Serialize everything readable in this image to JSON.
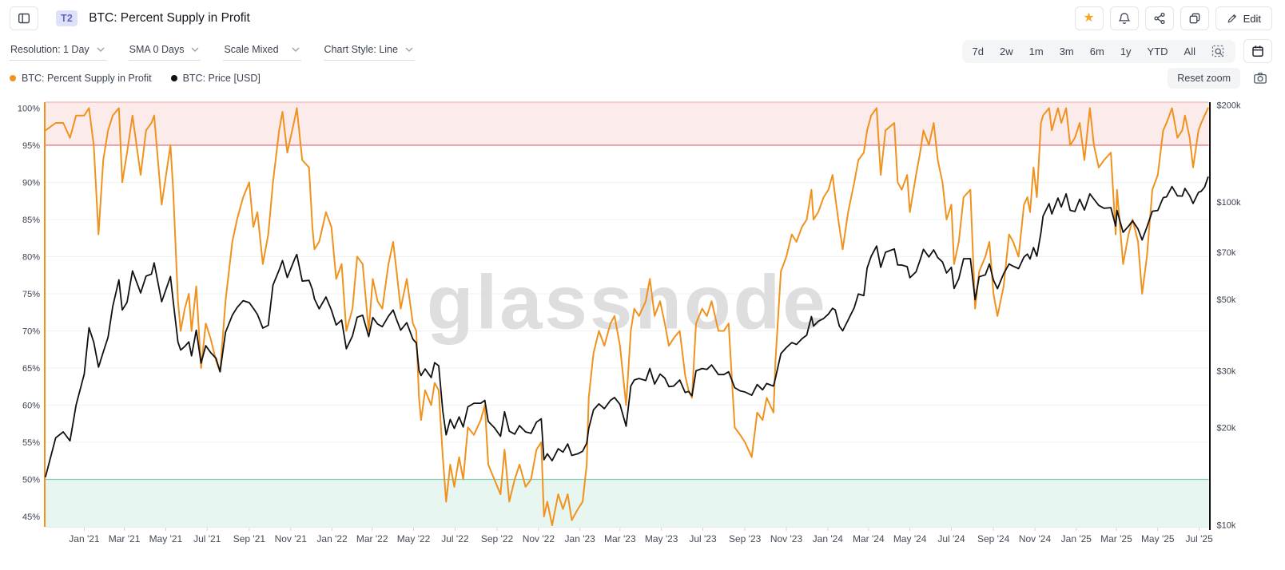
{
  "header": {
    "badge": "T2",
    "title": "BTC: Percent Supply in Profit",
    "actions": {
      "edit_label": "Edit"
    },
    "icon_names": [
      "panel-left-icon",
      "favorite-star-icon",
      "bell-icon",
      "share-icon",
      "duplicate-icon",
      "pencil-icon"
    ]
  },
  "toolbar": {
    "dropdowns": [
      {
        "label": "Resolution: 1 Day"
      },
      {
        "label": "SMA 0 Days"
      },
      {
        "label": "Scale Mixed"
      },
      {
        "label": "Chart Style: Line"
      }
    ],
    "ranges": [
      "7d",
      "2w",
      "1m",
      "3m",
      "6m",
      "1y",
      "YTD",
      "All"
    ],
    "icon_names": [
      "zoom-select-icon",
      "calendar-icon"
    ]
  },
  "legend": {
    "items": [
      {
        "label": "BTC: Percent Supply in Profit",
        "color": "#f0921e"
      },
      {
        "label": "BTC: Price [USD]",
        "color": "#111111"
      }
    ],
    "reset_zoom_label": "Reset zoom",
    "icon_names": [
      "camera-icon"
    ]
  },
  "watermark": "glassnode",
  "colors": {
    "accent_orange": "#f0921e",
    "price_black": "#111111",
    "star_gold": "#f7a825",
    "badge_bg": "#dfe1f9",
    "badge_text": "#5f66c9",
    "grid": "#f0f1f2"
  },
  "chart_data": {
    "type": "line",
    "title": "BTC: Percent Supply in Profit",
    "grid": "horizontal-only",
    "legend_position": "top-left",
    "x_domain": [
      "2020-11-05",
      "2025-07-15"
    ],
    "left_axis": {
      "label": "percent supply in profit",
      "domain": [
        43.6,
        100.8
      ],
      "scale": "linear",
      "ticks": [
        {
          "value": 100,
          "label": "100%"
        },
        {
          "value": 95,
          "label": "95%"
        },
        {
          "value": 90,
          "label": "90%"
        },
        {
          "value": 85,
          "label": "85%"
        },
        {
          "value": 80,
          "label": "80%"
        },
        {
          "value": 75,
          "label": "75%"
        },
        {
          "value": 70,
          "label": "70%"
        },
        {
          "value": 65,
          "label": "65%"
        },
        {
          "value": 60,
          "label": "60%"
        },
        {
          "value": 55,
          "label": "55%"
        },
        {
          "value": 50,
          "label": "50%"
        },
        {
          "value": 45,
          "label": "45%"
        }
      ],
      "grid_values": [
        90,
        85,
        80,
        75,
        70,
        65,
        60,
        55,
        45
      ]
    },
    "right_axis": {
      "label": "BTC price, thousand USD",
      "domain": [
        9.85,
        204
      ],
      "scale": "log",
      "ticks": [
        {
          "value": 200,
          "label": "$200k"
        },
        {
          "value": 100,
          "label": "$100k"
        },
        {
          "value": 70,
          "label": "$70k"
        },
        {
          "value": 50,
          "label": "$50k"
        },
        {
          "value": 30,
          "label": "$30k"
        },
        {
          "value": 20,
          "label": "$20k"
        },
        {
          "value": 10,
          "label": "$10k"
        }
      ]
    },
    "bands": [
      {
        "name": "high-profit-band",
        "axis": "left",
        "from": 95,
        "to": 100.8,
        "fill": "rgba(228,90,90,0.12)",
        "border_top": "#f2b3b0",
        "border_bottom": "#e25d5d"
      },
      {
        "name": "low-profit-band",
        "axis": "left",
        "from": 43.6,
        "to": 50,
        "fill": "rgba(102,194,164,0.15)",
        "border_top": "#7ecfae"
      }
    ],
    "x_tick_labels": [
      {
        "date": "2021-01-01",
        "label": "Jan '21"
      },
      {
        "date": "2021-03-01",
        "label": "Mar '21"
      },
      {
        "date": "2021-05-01",
        "label": "May '21"
      },
      {
        "date": "2021-07-01",
        "label": "Jul '21"
      },
      {
        "date": "2021-09-01",
        "label": "Sep '21"
      },
      {
        "date": "2021-11-01",
        "label": "Nov '21"
      },
      {
        "date": "2022-01-01",
        "label": "Jan '22"
      },
      {
        "date": "2022-03-01",
        "label": "Mar '22"
      },
      {
        "date": "2022-05-01",
        "label": "May '22"
      },
      {
        "date": "2022-07-01",
        "label": "Jul '22"
      },
      {
        "date": "2022-09-01",
        "label": "Sep '22"
      },
      {
        "date": "2022-11-01",
        "label": "Nov '22"
      },
      {
        "date": "2023-01-01",
        "label": "Jan '23"
      },
      {
        "date": "2023-03-01",
        "label": "Mar '23"
      },
      {
        "date": "2023-05-01",
        "label": "May '23"
      },
      {
        "date": "2023-07-01",
        "label": "Jul '23"
      },
      {
        "date": "2023-09-01",
        "label": "Sep '23"
      },
      {
        "date": "2023-11-01",
        "label": "Nov '23"
      },
      {
        "date": "2024-01-01",
        "label": "Jan '24"
      },
      {
        "date": "2024-03-01",
        "label": "Mar '24"
      },
      {
        "date": "2024-05-01",
        "label": "May '24"
      },
      {
        "date": "2024-07-01",
        "label": "Jul '24"
      },
      {
        "date": "2024-09-01",
        "label": "Sep '24"
      },
      {
        "date": "2024-11-01",
        "label": "Nov '24"
      },
      {
        "date": "2025-01-01",
        "label": "Jan '25"
      },
      {
        "date": "2025-03-01",
        "label": "Mar '25"
      },
      {
        "date": "2025-05-01",
        "label": "May '25"
      },
      {
        "date": "2025-07-01",
        "label": "Jul '25"
      }
    ],
    "x": [
      "2020-11-05",
      "2020-11-20",
      "2020-12-01",
      "2020-12-11",
      "2020-12-20",
      "2021-01-01",
      "2021-01-08",
      "2021-01-15",
      "2021-01-22",
      "2021-01-29",
      "2021-02-05",
      "2021-02-12",
      "2021-02-21",
      "2021-02-26",
      "2021-03-05",
      "2021-03-13",
      "2021-03-25",
      "2021-04-02",
      "2021-04-10",
      "2021-04-14",
      "2021-04-25",
      "2021-05-08",
      "2021-05-12",
      "2021-05-19",
      "2021-05-23",
      "2021-05-29",
      "2021-06-04",
      "2021-06-08",
      "2021-06-15",
      "2021-06-22",
      "2021-06-29",
      "2021-07-06",
      "2021-07-14",
      "2021-07-20",
      "2021-07-28",
      "2021-08-07",
      "2021-08-14",
      "2021-08-23",
      "2021-09-01",
      "2021-09-07",
      "2021-09-13",
      "2021-09-21",
      "2021-09-29",
      "2021-10-06",
      "2021-10-15",
      "2021-10-20",
      "2021-10-27",
      "2021-11-08",
      "2021-11-10",
      "2021-11-18",
      "2021-11-28",
      "2021-12-03",
      "2021-12-06",
      "2021-12-13",
      "2021-12-23",
      "2021-12-31",
      "2022-01-07",
      "2022-01-15",
      "2022-01-22",
      "2022-01-31",
      "2022-02-07",
      "2022-02-15",
      "2022-02-24",
      "2022-03-02",
      "2022-03-09",
      "2022-03-16",
      "2022-03-25",
      "2022-04-01",
      "2022-04-06",
      "2022-04-12",
      "2022-04-21",
      "2022-04-30",
      "2022-05-05",
      "2022-05-09",
      "2022-05-12",
      "2022-05-18",
      "2022-05-27",
      "2022-06-01",
      "2022-06-07",
      "2022-06-13",
      "2022-06-18",
      "2022-06-24",
      "2022-06-30",
      "2022-07-07",
      "2022-07-13",
      "2022-07-20",
      "2022-07-29",
      "2022-08-08",
      "2022-08-14",
      "2022-08-19",
      "2022-08-28",
      "2022-09-06",
      "2022-09-12",
      "2022-09-19",
      "2022-09-27",
      "2022-10-04",
      "2022-10-13",
      "2022-10-21",
      "2022-10-29",
      "2022-11-05",
      "2022-11-09",
      "2022-11-14",
      "2022-11-21",
      "2022-11-30",
      "2022-12-07",
      "2022-12-14",
      "2022-12-20",
      "2022-12-29",
      "2023-01-05",
      "2023-01-11",
      "2023-01-14",
      "2023-01-21",
      "2023-01-29",
      "2023-02-06",
      "2023-02-15",
      "2023-02-21",
      "2023-03-01",
      "2023-03-10",
      "2023-03-17",
      "2023-03-22",
      "2023-03-29",
      "2023-04-08",
      "2023-04-14",
      "2023-04-21",
      "2023-04-29",
      "2023-05-06",
      "2023-05-12",
      "2023-05-19",
      "2023-05-28",
      "2023-06-05",
      "2023-06-10",
      "2023-06-15",
      "2023-06-21",
      "2023-06-30",
      "2023-07-07",
      "2023-07-14",
      "2023-07-24",
      "2023-08-01",
      "2023-08-08",
      "2023-08-17",
      "2023-08-25",
      "2023-09-01",
      "2023-09-11",
      "2023-09-19",
      "2023-09-27",
      "2023-10-03",
      "2023-10-13",
      "2023-10-16",
      "2023-10-24",
      "2023-11-01",
      "2023-11-09",
      "2023-11-16",
      "2023-11-24",
      "2023-12-01",
      "2023-12-08",
      "2023-12-11",
      "2023-12-18",
      "2023-12-26",
      "2024-01-02",
      "2024-01-08",
      "2024-01-12",
      "2024-01-18",
      "2024-01-23",
      "2024-01-31",
      "2024-02-09",
      "2024-02-15",
      "2024-02-23",
      "2024-02-28",
      "2024-03-05",
      "2024-03-13",
      "2024-03-19",
      "2024-03-26",
      "2024-04-08",
      "2024-04-13",
      "2024-04-19",
      "2024-04-27",
      "2024-05-01",
      "2024-05-10",
      "2024-05-16",
      "2024-05-21",
      "2024-05-29",
      "2024-06-05",
      "2024-06-11",
      "2024-06-18",
      "2024-06-24",
      "2024-07-01",
      "2024-07-05",
      "2024-07-12",
      "2024-07-19",
      "2024-07-29",
      "2024-08-05",
      "2024-08-11",
      "2024-08-20",
      "2024-08-26",
      "2024-09-01",
      "2024-09-07",
      "2024-09-16",
      "2024-09-24",
      "2024-09-30",
      "2024-10-08",
      "2024-10-16",
      "2024-10-21",
      "2024-10-25",
      "2024-10-30",
      "2024-11-04",
      "2024-11-10",
      "2024-11-13",
      "2024-11-22",
      "2024-11-26",
      "2024-12-05",
      "2024-12-10",
      "2024-12-17",
      "2024-12-23",
      "2024-12-30",
      "2025-01-06",
      "2025-01-13",
      "2025-01-21",
      "2025-01-27",
      "2025-02-03",
      "2025-02-11",
      "2025-02-21",
      "2025-02-28",
      "2025-03-02",
      "2025-03-11",
      "2025-03-19",
      "2025-03-25",
      "2025-04-02",
      "2025-04-08",
      "2025-04-15",
      "2025-04-23",
      "2025-05-01",
      "2025-05-09",
      "2025-05-14",
      "2025-05-22",
      "2025-05-30",
      "2025-06-06",
      "2025-06-10",
      "2025-06-17",
      "2025-06-22",
      "2025-06-30",
      "2025-07-04",
      "2025-07-09",
      "2025-07-14"
    ],
    "series": [
      {
        "name": "BTC: Percent Supply in Profit",
        "axis": "left",
        "color": "#f0921e",
        "unit": "%",
        "values": [
          97,
          98,
          98,
          96,
          99,
          99,
          100,
          95,
          83,
          93,
          97,
          99,
          100,
          90,
          94,
          99,
          91,
          97,
          98,
          99,
          87,
          95,
          89,
          74,
          70,
          73,
          75,
          70,
          76,
          65,
          71,
          69,
          66,
          64.5,
          74,
          82,
          85,
          88,
          90,
          84,
          86,
          79,
          83,
          90,
          97,
          99.5,
          94,
          99,
          100,
          93,
          92,
          84,
          81,
          82,
          86,
          84,
          77,
          79,
          70,
          73,
          80,
          79,
          70,
          77,
          74,
          73,
          79,
          82,
          78,
          73,
          77,
          71,
          70,
          61,
          58,
          62,
          60,
          63,
          62,
          53,
          47,
          52,
          49,
          53,
          50,
          57,
          56,
          58,
          60,
          52,
          50,
          48,
          54,
          47,
          50,
          52,
          49,
          50,
          54,
          55,
          45,
          47,
          43.8,
          48,
          46,
          48,
          44.5,
          46,
          47,
          52,
          61,
          67,
          70,
          68,
          71,
          72,
          68,
          60,
          70,
          73,
          72,
          74,
          77,
          72,
          74,
          71,
          68,
          69,
          70,
          64,
          62,
          61,
          71,
          73,
          72,
          74,
          70,
          70,
          71,
          57,
          56,
          55,
          53,
          59,
          58,
          61,
          59,
          66,
          78,
          80,
          83,
          82,
          84,
          85,
          89,
          85,
          86,
          88,
          89,
          91,
          88,
          84,
          81,
          86,
          90,
          93,
          94,
          97,
          99,
          100,
          91,
          97,
          98,
          90,
          89,
          91,
          86,
          91,
          94,
          97,
          95,
          98,
          93,
          90,
          85,
          87,
          79,
          82,
          88,
          89,
          73,
          78,
          80,
          82,
          75,
          72,
          76,
          83,
          82,
          80,
          87,
          88,
          86,
          92,
          88,
          98,
          99,
          100,
          97,
          100,
          98,
          100,
          95,
          96,
          98,
          93,
          100,
          95,
          92,
          93,
          94,
          83,
          89,
          79,
          83,
          85,
          82,
          75,
          80,
          89,
          91,
          97,
          98,
          100,
          96,
          97,
          99,
          96,
          92,
          97,
          98,
          99,
          100
        ]
      },
      {
        "name": "BTC: Price [USD]",
        "axis": "right",
        "color": "#111111",
        "unit": "thousand USD",
        "values": [
          14.1,
          18.6,
          19.4,
          18.2,
          23.5,
          29.3,
          40.8,
          36.8,
          30.8,
          34.3,
          38.1,
          47.5,
          57.4,
          46.3,
          48.9,
          61.2,
          52.3,
          59.0,
          59.8,
          64.8,
          49.1,
          58.8,
          49.4,
          36.8,
          34.8,
          35.7,
          36.9,
          33.4,
          40.1,
          31.7,
          35.9,
          34.2,
          32.8,
          29.8,
          39.5,
          44.6,
          47.1,
          49.5,
          48.8,
          46.9,
          44.9,
          40.7,
          41.5,
          55.3,
          61.6,
          65.9,
          58.4,
          67.5,
          68.8,
          56.9,
          57.2,
          53.6,
          50.1,
          46.7,
          50.8,
          46.3,
          41.6,
          43.1,
          35.1,
          38.5,
          44.0,
          44.6,
          38.3,
          43.9,
          41.9,
          41.1,
          44.3,
          46.3,
          43.2,
          40.1,
          42.3,
          37.6,
          36.6,
          30.1,
          29.0,
          30.4,
          28.6,
          31.8,
          31.1,
          22.5,
          19.0,
          21.2,
          19.9,
          21.6,
          20.1,
          23.2,
          23.8,
          23.8,
          24.3,
          20.9,
          20.0,
          18.8,
          22.4,
          19.5,
          19.1,
          20.3,
          19.4,
          19.2,
          20.8,
          21.3,
          15.9,
          16.6,
          15.8,
          17.2,
          16.8,
          17.8,
          16.4,
          16.6,
          16.9,
          17.9,
          19.9,
          22.7,
          23.7,
          22.9,
          24.3,
          24.8,
          23.6,
          20.2,
          26.9,
          28.1,
          28.4,
          28.0,
          30.5,
          27.3,
          29.3,
          28.5,
          26.8,
          26.9,
          28.1,
          25.7,
          25.9,
          25.1,
          30.0,
          30.5,
          30.3,
          31.3,
          29.2,
          29.2,
          29.8,
          26.6,
          26.0,
          25.8,
          25.2,
          27.2,
          26.2,
          27.4,
          26.9,
          28.5,
          33.9,
          35.4,
          36.7,
          36.2,
          37.7,
          38.7,
          44.2,
          41.3,
          42.7,
          43.6,
          45.0,
          46.9,
          46.3,
          41.3,
          39.9,
          43.1,
          47.1,
          51.9,
          51.3,
          62.5,
          68.0,
          73.1,
          62.8,
          69.9,
          71.6,
          63.9,
          63.8,
          63.1,
          58.3,
          60.8,
          66.2,
          71.4,
          67.6,
          71.1,
          67.3,
          65.2,
          60.3,
          62.8,
          54.0,
          57.9,
          66.7,
          66.8,
          49.8,
          58.7,
          59.5,
          64.3,
          57.3,
          53.9,
          60.0,
          64.3,
          63.3,
          62.2,
          67.6,
          69.0,
          66.6,
          72.3,
          68.0,
          80.4,
          90.4,
          98.9,
          91.9,
          102.9,
          96.6,
          106.1,
          94.3,
          93.5,
          102.1,
          94.5,
          106.1,
          102.1,
          97.7,
          95.7,
          96.1,
          84.3,
          94.2,
          80.6,
          84.2,
          87.5,
          82.5,
          76.3,
          83.7,
          93.7,
          94.2,
          103.2,
          103.8,
          111.7,
          104.6,
          104.4,
          110.2,
          104.6,
          99.0,
          107.2,
          108.1,
          111.3,
          119.5
        ]
      }
    ]
  }
}
